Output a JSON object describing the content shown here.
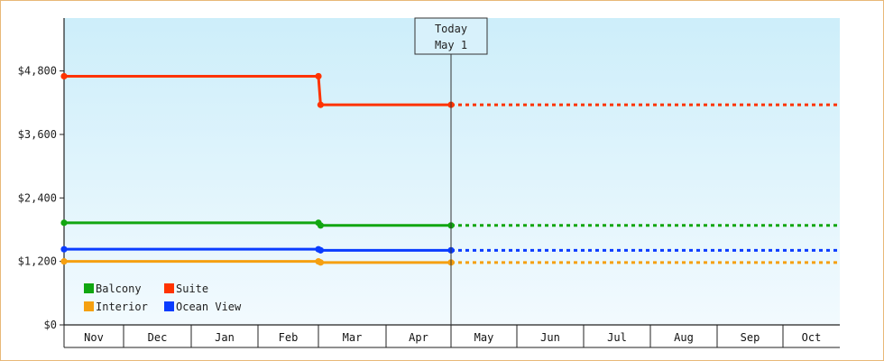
{
  "chart_data": {
    "type": "line",
    "title": "",
    "xlabel": "",
    "ylabel": "",
    "x_months": [
      "Nov",
      "Dec",
      "Jan",
      "Feb",
      "Mar",
      "Apr",
      "May",
      "Jun",
      "Jul",
      "Aug",
      "Sep",
      "Oct"
    ],
    "ylim": [
      0,
      5800
    ],
    "y_ticks": [
      {
        "value": 0,
        "label": "$0"
      },
      {
        "value": 1200,
        "label": "$1,200"
      },
      {
        "value": 2400,
        "label": "$2,400"
      },
      {
        "value": 3600,
        "label": "$3,600"
      },
      {
        "value": 4800,
        "label": "$4,800"
      }
    ],
    "today_marker": {
      "line1": "Today",
      "line2": "May 1",
      "x": "May 1"
    },
    "series": [
      {
        "name": "Balcony",
        "color": "#11a611",
        "points": [
          {
            "x": "Nov 1",
            "y": 1930
          },
          {
            "x": "Mar 1",
            "y": 1930
          },
          {
            "x": "Mar 2",
            "y": 1880
          },
          {
            "x": "May 1",
            "y": 1880
          }
        ],
        "projected_through": "Oct 31"
      },
      {
        "name": "Suite",
        "color": "#ff3300",
        "points": [
          {
            "x": "Nov 1",
            "y": 4700
          },
          {
            "x": "Mar 1",
            "y": 4700
          },
          {
            "x": "Mar 2",
            "y": 4160
          },
          {
            "x": "May 1",
            "y": 4160
          }
        ],
        "projected_through": "Oct 31"
      },
      {
        "name": "Interior",
        "color": "#f5a011",
        "points": [
          {
            "x": "Nov 1",
            "y": 1200
          },
          {
            "x": "Mar 1",
            "y": 1200
          },
          {
            "x": "Mar 2",
            "y": 1180
          },
          {
            "x": "May 1",
            "y": 1180
          }
        ],
        "projected_through": "Oct 31"
      },
      {
        "name": "Ocean View",
        "color": "#0a3cff",
        "points": [
          {
            "x": "Nov 1",
            "y": 1430
          },
          {
            "x": "Mar 1",
            "y": 1430
          },
          {
            "x": "Mar 2",
            "y": 1410
          },
          {
            "x": "May 1",
            "y": 1410
          }
        ],
        "projected_through": "Oct 31"
      }
    ],
    "legend": {
      "placement": "bottom-left",
      "rows": [
        [
          "Balcony",
          "Suite"
        ],
        [
          "Interior",
          "Ocean View"
        ]
      ]
    },
    "background_gradient": [
      "#cdeefa",
      "#f2fafe"
    ],
    "grid": false
  }
}
